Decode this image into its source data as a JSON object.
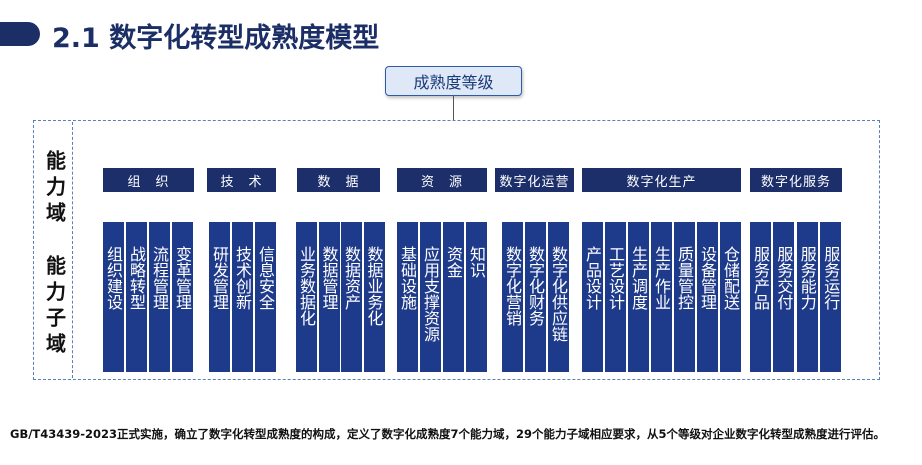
{
  "title": "2.1 数字化转型成熟度模型",
  "level_box": "成熟度等级",
  "left_labels": {
    "domain": "能力域",
    "subdomain": "能力子域"
  },
  "domains": [
    {
      "name": "组　织",
      "subdomains": [
        "组织建设",
        "战略转型",
        "流程管理",
        "变革管理"
      ]
    },
    {
      "name": "技　术",
      "subdomains": [
        "研发管理",
        "技术创新",
        "信息安全"
      ]
    },
    {
      "name": "数　据",
      "subdomains": [
        "业务数据化",
        "数据管理",
        "数据资产",
        "数据业务化"
      ]
    },
    {
      "name": "资　源",
      "subdomains": [
        "基础设施",
        "应用支撑资源",
        "资金",
        "知识"
      ]
    },
    {
      "name": "数字化运营",
      "subdomains": [
        "数字化营销",
        "数字化财务",
        "数字化供应链"
      ]
    },
    {
      "name": "数字化生产",
      "subdomains": [
        "产品设计",
        "工艺设计",
        "生产调度",
        "生产作业",
        "质量管控",
        "设备管理",
        "仓储配送"
      ]
    },
    {
      "name": "数字化服务",
      "subdomains": [
        "服务产品",
        "服务交付",
        "服务能力",
        "服务运行"
      ]
    }
  ],
  "footnote": "GB/T43439-2023正式实施，确立了数字化转型成熟度的构成，定义了数字化成熟度7个能力域，29个能力子域相应要求，从5个等级对企业数字化转型成熟度进行评估。"
}
